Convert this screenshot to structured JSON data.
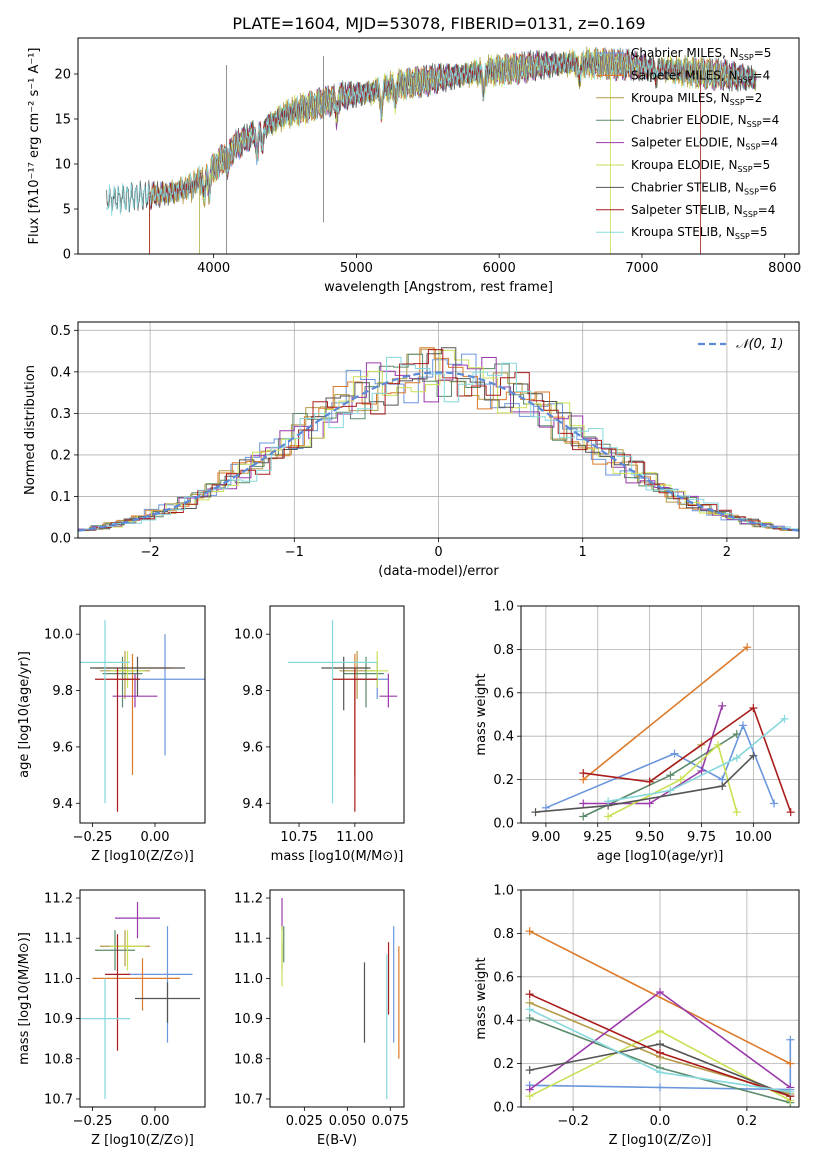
{
  "figure_title": "PLATE=1604, MJD=53078, FIBERID=0131, z=0.169",
  "colors": [
    "#6a96dc",
    "#dd7a2a",
    "#b59a48",
    "#5a8a6a",
    "#9a3aaa",
    "#c9e055",
    "#555555",
    "#aa1c1c",
    "#86d8dc"
  ],
  "chart_data": [
    {
      "id": "spectrum",
      "type": "line",
      "title": "PLATE=1604, MJD=53078, FIBERID=0131, z=0.169",
      "xlabel": "wavelength [Angstrom, rest frame]",
      "ylabel": "Flux [fλ10⁻¹⁷ erg cm⁻² s⁻¹ A⁻¹]",
      "xlim": [
        3050,
        8100
      ],
      "ylim": [
        0,
        24
      ],
      "xticks": [
        4000,
        5000,
        6000,
        7000,
        8000
      ],
      "yticks": [
        0,
        5,
        10,
        15,
        20
      ],
      "grid": false,
      "legend_position": "top-right",
      "continuum": {
        "x": [
          3250,
          3400,
          3550,
          3700,
          3850,
          4000,
          4150,
          4300,
          4500,
          4700,
          4900,
          5100,
          5300,
          5500,
          5700,
          5900,
          6100,
          6300,
          6500,
          6700,
          6900,
          7100,
          7300,
          7500,
          7800
        ],
        "y": [
          6.0,
          6.3,
          6.5,
          6.8,
          7.5,
          9.5,
          12.0,
          13.5,
          15.5,
          16.5,
          17.5,
          18.0,
          18.8,
          19.3,
          19.8,
          20.3,
          20.6,
          21.0,
          21.2,
          21.2,
          21.0,
          20.6,
          20.3,
          20.0,
          19.5
        ]
      },
      "series": [
        {
          "name": "Chabrier MILES, N_SSP=5",
          "label_main": "Chabrier MILES, N",
          "label_sub": "SSP",
          "label_tail": "=5",
          "end": 3550
        },
        {
          "name": "Salpeter MILES, N_SSP=4",
          "label_main": "Salpeter MILES, N",
          "label_sub": "SSP",
          "label_tail": "=4",
          "end": 3550
        },
        {
          "name": "Kroupa MILES, N_SSP=2",
          "label_main": "Kroupa MILES, N",
          "label_sub": "SSP",
          "label_tail": "=2",
          "end": 3550
        },
        {
          "name": "Chabrier ELODIE, N_SSP=4",
          "label_main": "Chabrier ELODIE, N",
          "label_sub": "SSP",
          "label_tail": "=4",
          "end": 3900
        },
        {
          "name": "Salpeter ELODIE, N_SSP=4",
          "label_main": "Salpeter ELODIE, N",
          "label_sub": "SSP",
          "label_tail": "=4",
          "end": 3900
        },
        {
          "name": "Kroupa ELODIE, N_SSP=5",
          "label_main": "Kroupa ELODIE, N",
          "label_sub": "SSP",
          "label_tail": "=5",
          "end": 3900
        },
        {
          "name": "Chabrier STELIB, N_SSP=6",
          "label_main": "Chabrier STELIB, N",
          "label_sub": "SSP",
          "label_tail": "=6",
          "end": 3250
        },
        {
          "name": "Salpeter STELIB, N_SSP=4",
          "label_main": "Salpeter STELIB, N",
          "label_sub": "SSP",
          "label_tail": "=4",
          "end": 3550
        },
        {
          "name": "Kroupa STELIB, N_SSP=5",
          "label_main": "Kroupa STELIB, N",
          "label_sub": "SSP",
          "label_tail": "=5",
          "end": 3250
        }
      ]
    },
    {
      "id": "residuals",
      "type": "line",
      "xlabel": "(data-model)/error",
      "ylabel": "Normed distribution",
      "xlim": [
        -2.5,
        2.5
      ],
      "ylim": [
        0,
        0.52
      ],
      "xticks": [
        -2,
        -1,
        0,
        1,
        2
      ],
      "yticks": [
        0.0,
        0.1,
        0.2,
        0.3,
        0.4,
        0.5
      ],
      "grid": true,
      "legend_position": "top-right",
      "legend": "𝒩(0, 1)",
      "bin_width": 0.1,
      "curve": "normal(0,1)"
    },
    {
      "id": "age-vs-Z",
      "type": "scatter",
      "xlabel": "Z [log10(Z/Z⊙)]",
      "ylabel": "age [log10(age/yr)]",
      "xlim": [
        -0.3,
        0.2
      ],
      "ylim": [
        9.33,
        10.1
      ],
      "xticks": [
        -0.25,
        0.0
      ],
      "yticks": [
        9.4,
        9.6,
        9.8,
        10.0
      ],
      "grid": false,
      "points": [
        {
          "c": 0,
          "x": 0.04,
          "y": 9.84,
          "xl": 0.17,
          "xh": 0.17,
          "yl": 0.27,
          "yh": 0.16
        },
        {
          "c": 1,
          "x": -0.09,
          "y": 9.88,
          "xl": 0.15,
          "xh": 0.16,
          "yl": 0.38,
          "yh": 0.05
        },
        {
          "c": 2,
          "x": -0.12,
          "y": 9.87,
          "xl": 0.1,
          "xh": 0.1,
          "yl": 0.1,
          "yh": 0.07
        },
        {
          "c": 3,
          "x": -0.13,
          "y": 9.86,
          "xl": 0.08,
          "xh": 0.08,
          "yl": 0.12,
          "yh": 0.06
        },
        {
          "c": 4,
          "x": -0.08,
          "y": 9.78,
          "xl": 0.09,
          "xh": 0.09,
          "yl": 0.04,
          "yh": 0.08
        },
        {
          "c": 5,
          "x": -0.11,
          "y": 9.87,
          "xl": 0.07,
          "xh": 0.07,
          "yl": 0.06,
          "yh": 0.07
        },
        {
          "c": 6,
          "x": -0.07,
          "y": 9.88,
          "xl": 0.19,
          "xh": 0.19,
          "yl": 0.1,
          "yh": 0.04
        },
        {
          "c": 7,
          "x": -0.15,
          "y": 9.84,
          "xl": 0.09,
          "xh": 0.09,
          "yl": 0.47,
          "yh": 0.04
        },
        {
          "c": 8,
          "x": -0.2,
          "y": 9.9,
          "xl": 0.1,
          "xh": 0.1,
          "yl": 0.5,
          "yh": 0.15
        }
      ]
    },
    {
      "id": "age-vs-mass",
      "type": "scatter",
      "xlabel": "mass [log10(M/M⊙)]",
      "ylabel": "",
      "xlim": [
        10.62,
        11.22
      ],
      "ylim": [
        9.33,
        10.1
      ],
      "xticks": [
        10.75,
        11.0
      ],
      "yticks": [
        9.4,
        9.6,
        9.8,
        10.0
      ],
      "grid": false,
      "points": [
        {
          "c": 0,
          "x": 11.1,
          "y": 9.84,
          "xl": 0.11,
          "xh": 0.05,
          "yl": 0.07,
          "yh": 0.06
        },
        {
          "c": 1,
          "x": 11.0,
          "y": 9.88,
          "xl": 0.1,
          "xh": 0.06,
          "yl": 0.38,
          "yh": 0.05
        },
        {
          "c": 2,
          "x": 11.01,
          "y": 9.87,
          "xl": 0.08,
          "xh": 0.08,
          "yl": 0.1,
          "yh": 0.07
        },
        {
          "c": 3,
          "x": 11.05,
          "y": 9.86,
          "xl": 0.1,
          "xh": 0.08,
          "yl": 0.12,
          "yh": 0.06
        },
        {
          "c": 4,
          "x": 11.15,
          "y": 9.78,
          "xl": 0.04,
          "xh": 0.04,
          "yl": 0.04,
          "yh": 0.08
        },
        {
          "c": 5,
          "x": 11.1,
          "y": 9.87,
          "xl": 0.05,
          "xh": 0.05,
          "yl": 0.06,
          "yh": 0.07
        },
        {
          "c": 6,
          "x": 10.95,
          "y": 9.88,
          "xl": 0.1,
          "xh": 0.12,
          "yl": 0.15,
          "yh": 0.04
        },
        {
          "c": 7,
          "x": 11.0,
          "y": 9.84,
          "xl": 0.1,
          "xh": 0.1,
          "yl": 0.47,
          "yh": 0.04
        },
        {
          "c": 8,
          "x": 10.9,
          "y": 9.9,
          "xl": 0.2,
          "xh": 0.2,
          "yl": 0.5,
          "yh": 0.15
        }
      ]
    },
    {
      "id": "mass-weight-vs-age",
      "type": "line",
      "xlabel": "age [log10(age/yr)]",
      "ylabel": "mass weight",
      "xlim": [
        8.88,
        10.22
      ],
      "ylim": [
        0,
        1.0
      ],
      "xticks": [
        9.0,
        9.25,
        9.5,
        9.75,
        10.0
      ],
      "yticks": [
        0.0,
        0.2,
        0.4,
        0.6,
        0.8,
        1.0
      ],
      "grid": true,
      "series": [
        {
          "c": 0,
          "x": [
            9.0,
            9.62,
            9.85,
            9.95,
            10.1
          ],
          "y": [
            0.07,
            0.32,
            0.2,
            0.45,
            0.09
          ]
        },
        {
          "c": 1,
          "x": [
            9.18,
            9.97
          ],
          "y": [
            0.2,
            0.81
          ]
        },
        {
          "c": 2,
          "x": [
            9.5,
            9.75
          ],
          "y": [
            0.19,
            0.36
          ]
        },
        {
          "c": 3,
          "x": [
            9.18,
            9.6,
            9.92
          ],
          "y": [
            0.03,
            0.22,
            0.41
          ]
        },
        {
          "c": 4,
          "x": [
            9.18,
            9.5,
            9.75,
            9.85
          ],
          "y": [
            0.09,
            0.09,
            0.24,
            0.54
          ]
        },
        {
          "c": 5,
          "x": [
            9.3,
            9.65,
            9.83,
            9.92
          ],
          "y": [
            0.03,
            0.2,
            0.36,
            0.05
          ]
        },
        {
          "c": 6,
          "x": [
            8.95,
            9.3,
            9.85,
            10.0
          ],
          "y": [
            0.05,
            0.08,
            0.17,
            0.31
          ]
        },
        {
          "c": 7,
          "x": [
            9.18,
            9.5,
            10.0,
            10.18
          ],
          "y": [
            0.23,
            0.19,
            0.53,
            0.05
          ]
        },
        {
          "c": 8,
          "x": [
            9.3,
            9.6,
            9.92,
            10.15
          ],
          "y": [
            0.1,
            0.15,
            0.3,
            0.48
          ]
        }
      ]
    },
    {
      "id": "mass-vs-Z",
      "type": "scatter",
      "xlabel": "Z [log10(Z/Z⊙)]",
      "ylabel": "mass [log10(M/M⊙)]",
      "xlim": [
        -0.3,
        0.2
      ],
      "ylim": [
        10.68,
        11.22
      ],
      "xticks": [
        -0.25,
        0.0
      ],
      "yticks": [
        10.7,
        10.8,
        10.9,
        11.0,
        11.1,
        11.2
      ],
      "grid": false,
      "points": [
        {
          "c": 0,
          "x": 0.05,
          "y": 11.01,
          "xl": 0.16,
          "xh": 0.1,
          "yl": 0.17,
          "yh": 0.12
        },
        {
          "c": 1,
          "x": -0.05,
          "y": 11.0,
          "xl": 0.2,
          "xh": 0.15,
          "yl": 0.08,
          "yh": 0.05
        },
        {
          "c": 2,
          "x": -0.12,
          "y": 11.08,
          "xl": 0.1,
          "xh": 0.1,
          "yl": 0.05,
          "yh": 0.04
        },
        {
          "c": 3,
          "x": -0.16,
          "y": 11.07,
          "xl": 0.08,
          "xh": 0.08,
          "yl": 0.05,
          "yh": 0.05
        },
        {
          "c": 4,
          "x": -0.07,
          "y": 11.15,
          "xl": 0.09,
          "xh": 0.09,
          "yl": 0.05,
          "yh": 0.04
        },
        {
          "c": 5,
          "x": -0.11,
          "y": 11.08,
          "xl": 0.07,
          "xh": 0.07,
          "yl": 0.06,
          "yh": 0.04
        },
        {
          "c": 6,
          "x": 0.05,
          "y": 10.95,
          "xl": 0.13,
          "xh": 0.13,
          "yl": 0.06,
          "yh": 0.04
        },
        {
          "c": 7,
          "x": -0.15,
          "y": 11.01,
          "xl": 0.05,
          "xh": 0.05,
          "yl": 0.19,
          "yh": 0.1
        },
        {
          "c": 8,
          "x": -0.2,
          "y": 10.9,
          "xl": 0.1,
          "xh": 0.1,
          "yl": 0.2,
          "yh": 0.1
        }
      ]
    },
    {
      "id": "mass-vs-EBV",
      "type": "scatter",
      "xlabel": "E(B-V)",
      "ylabel": "",
      "xlim": [
        0.005,
        0.083
      ],
      "ylim": [
        10.68,
        11.22
      ],
      "xticks": [
        0.025,
        0.05,
        0.075
      ],
      "yticks": [
        10.7,
        10.8,
        10.9,
        11.0,
        11.1,
        11.2
      ],
      "grid": false,
      "points": [
        {
          "c": 0,
          "x": 0.077,
          "y": 10.97,
          "xl": 0.0,
          "xh": 0.0,
          "yl": 0.13,
          "yh": 0.16
        },
        {
          "c": 1,
          "x": 0.08,
          "y": 10.94,
          "xl": 0.0,
          "xh": 0.0,
          "yl": 0.14,
          "yh": 0.14
        },
        {
          "c": 2,
          "x": 0.012,
          "y": 11.05,
          "xl": 0.0,
          "xh": 0.0,
          "yl": 0.03,
          "yh": 0.04
        },
        {
          "c": 3,
          "x": 0.013,
          "y": 11.08,
          "xl": 0.0,
          "xh": 0.0,
          "yl": 0.04,
          "yh": 0.05
        },
        {
          "c": 4,
          "x": 0.012,
          "y": 11.16,
          "xl": 0.0,
          "xh": 0.0,
          "yl": 0.04,
          "yh": 0.04
        },
        {
          "c": 5,
          "x": 0.012,
          "y": 11.05,
          "xl": 0.0,
          "xh": 0.0,
          "yl": 0.07,
          "yh": 0.08
        },
        {
          "c": 6,
          "x": 0.06,
          "y": 10.94,
          "xl": 0.0,
          "xh": 0.0,
          "yl": 0.1,
          "yh": 0.1
        },
        {
          "c": 7,
          "x": 0.074,
          "y": 10.97,
          "xl": 0.0,
          "xh": 0.0,
          "yl": 0.06,
          "yh": 0.12
        },
        {
          "c": 8,
          "x": 0.073,
          "y": 10.88,
          "xl": 0.0,
          "xh": 0.0,
          "yl": 0.18,
          "yh": 0.18
        }
      ]
    },
    {
      "id": "mass-weight-vs-Z",
      "type": "line",
      "xlabel": "Z [log10(Z/Z⊙)]",
      "ylabel": "mass weight",
      "xlim": [
        -0.32,
        0.32
      ],
      "ylim": [
        0,
        1.0
      ],
      "xticks": [
        -0.2,
        0.0,
        0.2
      ],
      "yticks": [
        0.0,
        0.2,
        0.4,
        0.6,
        0.8,
        1.0
      ],
      "grid": true,
      "series": [
        {
          "c": 0,
          "x": [
            -0.3,
            0.0,
            0.3,
            0.3
          ],
          "y": [
            0.1,
            0.09,
            0.08,
            0.31
          ]
        },
        {
          "c": 1,
          "x": [
            -0.3,
            0.3
          ],
          "y": [
            0.81,
            0.2
          ]
        },
        {
          "c": 2,
          "x": [
            -0.3,
            0.0,
            0.3
          ],
          "y": [
            0.48,
            0.23,
            0.06
          ]
        },
        {
          "c": 3,
          "x": [
            -0.3,
            0.0,
            0.3
          ],
          "y": [
            0.41,
            0.18,
            0.02
          ]
        },
        {
          "c": 4,
          "x": [
            -0.3,
            0.0,
            0.3
          ],
          "y": [
            0.08,
            0.53,
            0.09
          ]
        },
        {
          "c": 5,
          "x": [
            -0.3,
            0.0,
            0.3
          ],
          "y": [
            0.05,
            0.35,
            0.03
          ]
        },
        {
          "c": 6,
          "x": [
            -0.3,
            0.0,
            0.3
          ],
          "y": [
            0.17,
            0.29,
            0.05
          ]
        },
        {
          "c": 7,
          "x": [
            -0.3,
            0.0,
            0.3
          ],
          "y": [
            0.52,
            0.25,
            0.05
          ]
        },
        {
          "c": 8,
          "x": [
            -0.3,
            0.0,
            0.3
          ],
          "y": [
            0.45,
            0.16,
            0.07
          ]
        }
      ]
    }
  ]
}
